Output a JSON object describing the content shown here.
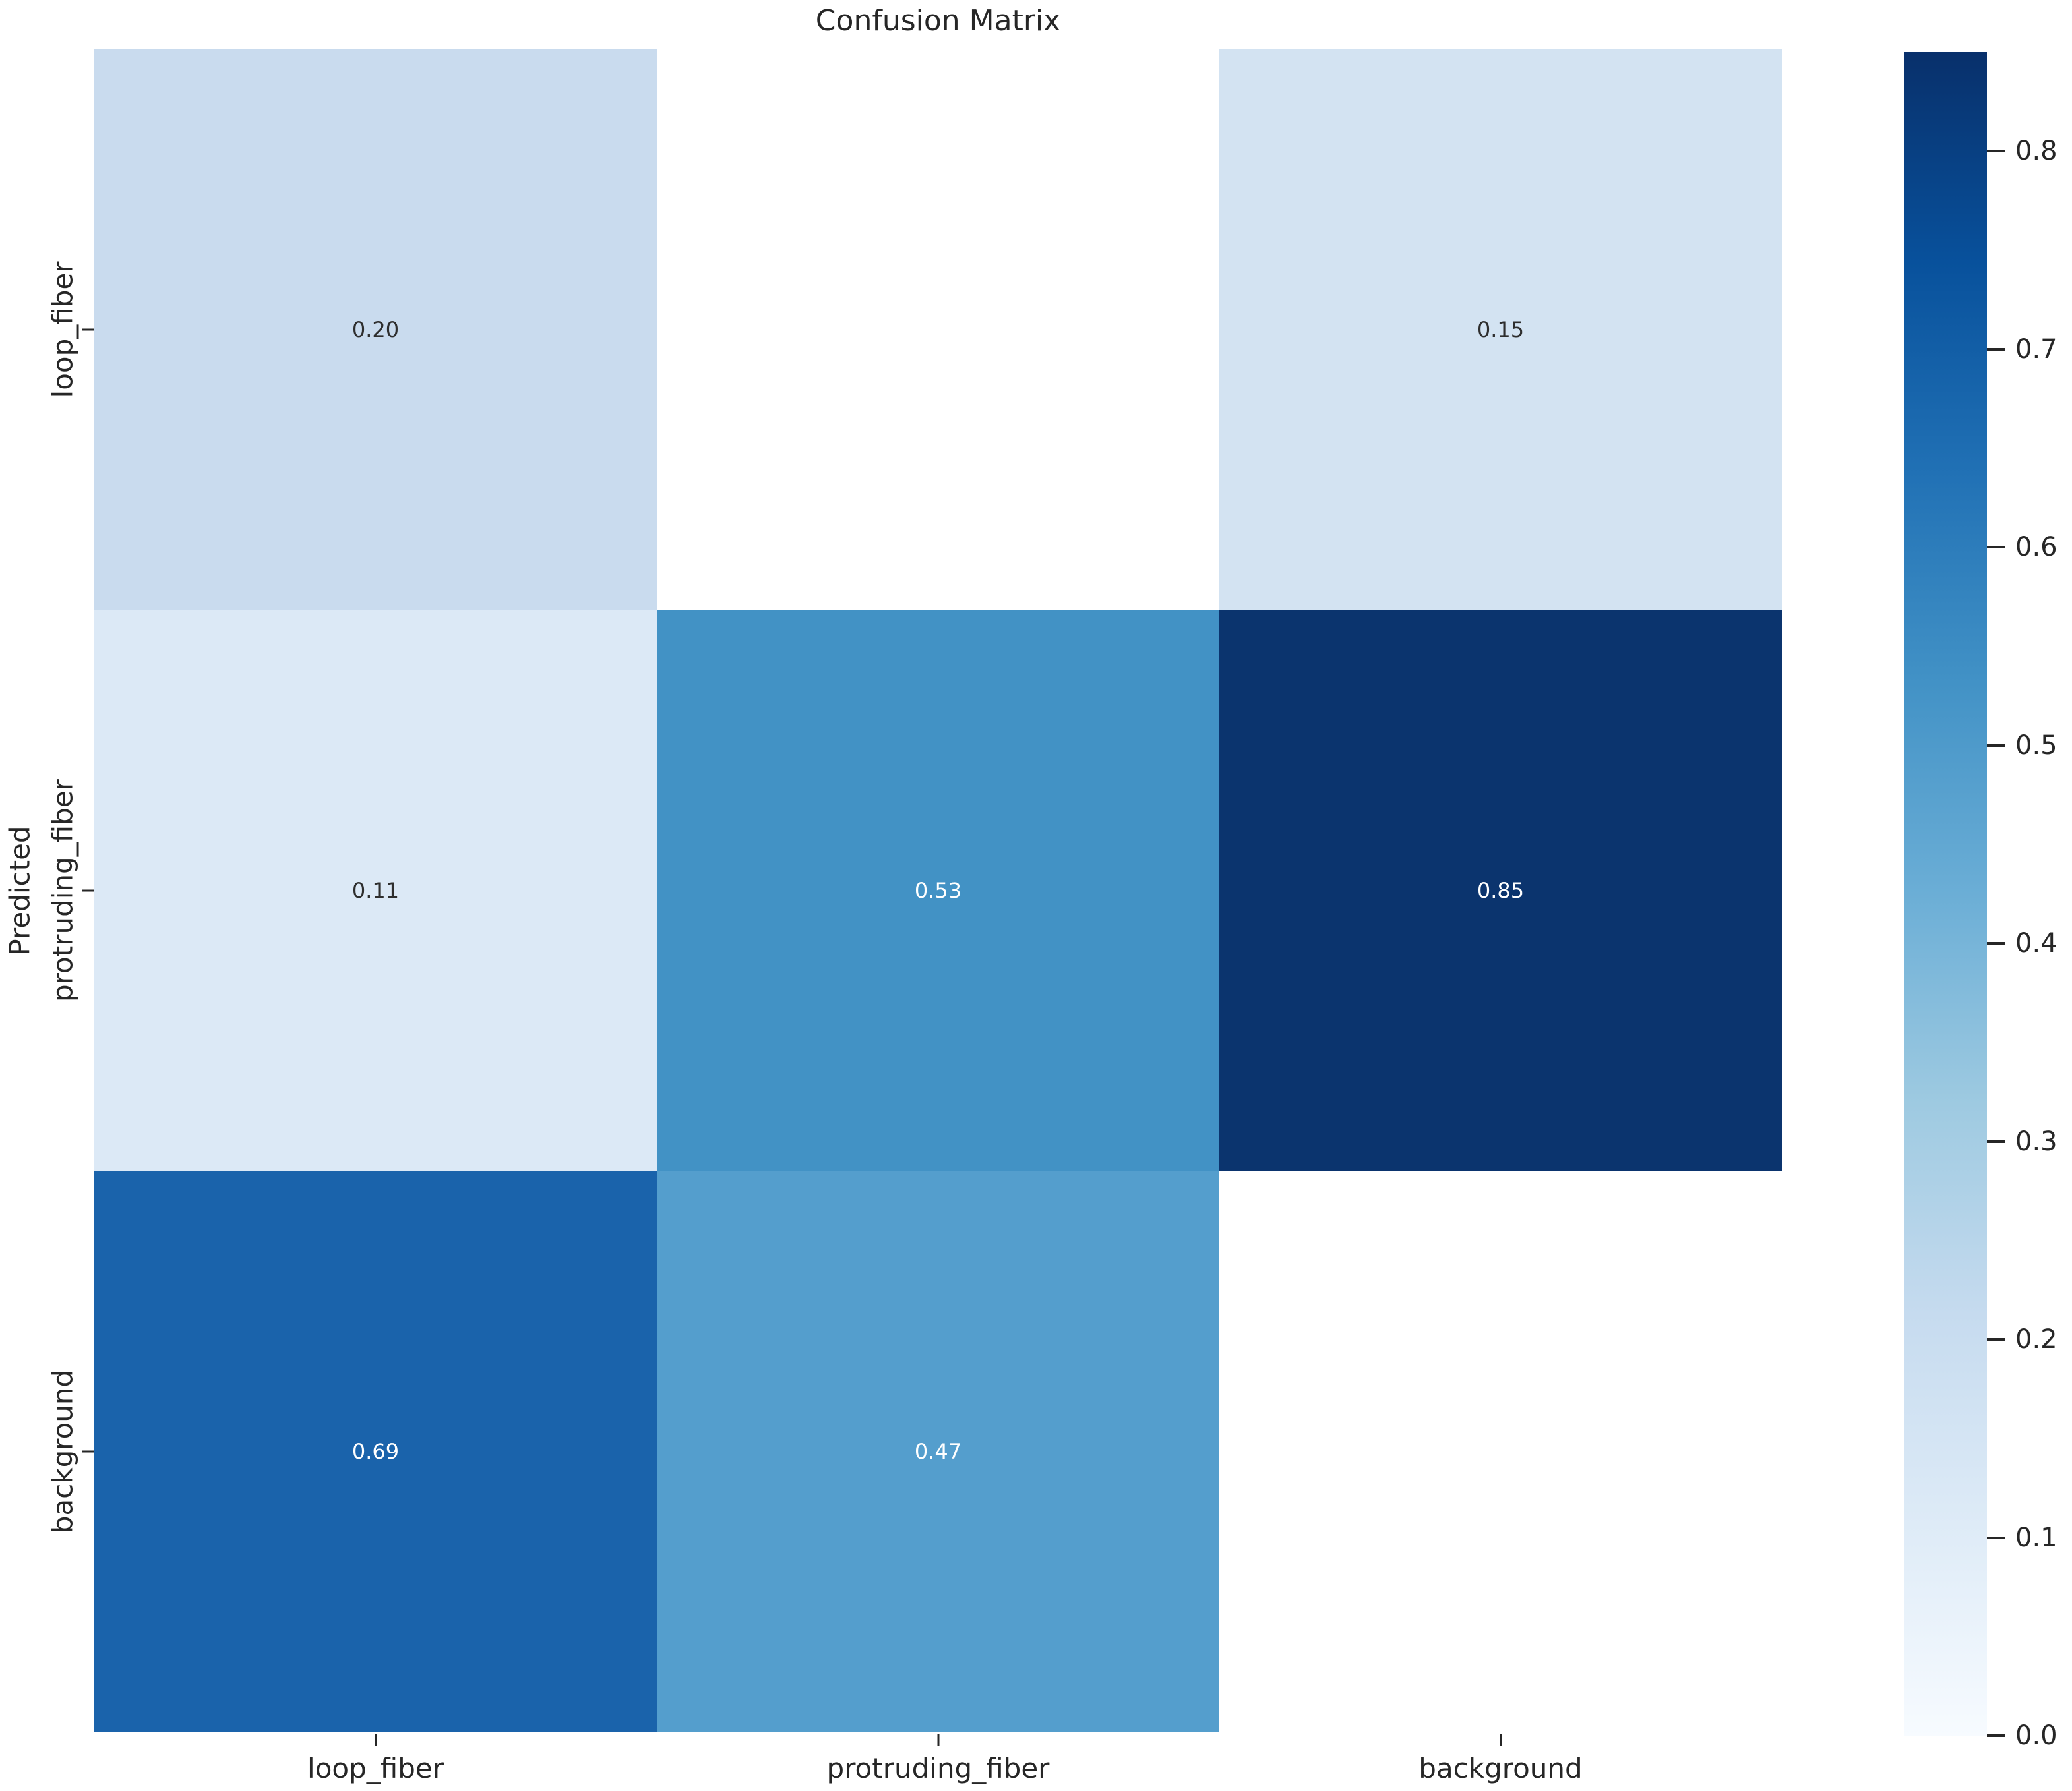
{
  "title": "Confusion Matrix",
  "chart_data": {
    "type": "heatmap",
    "title": "Confusion Matrix",
    "xlabel": "",
    "ylabel": "Predicted",
    "x_categories": [
      "loop_fiber",
      "protruding_fiber",
      "background"
    ],
    "y_categories": [
      "loop_fiber",
      "protruding_fiber",
      "background"
    ],
    "matrix": [
      [
        0.2,
        null,
        0.15
      ],
      [
        0.11,
        0.53,
        0.85
      ],
      [
        0.69,
        0.47,
        null
      ]
    ],
    "cell_labels": [
      [
        "0.20",
        "",
        "0.15"
      ],
      [
        "0.11",
        "0.53",
        "0.85"
      ],
      [
        "0.69",
        "0.47",
        ""
      ]
    ],
    "colormap": "Blues",
    "vmin": 0.0,
    "vmax": 0.85,
    "colorbar_tick_labels": [
      "0.8",
      "0.7",
      "0.6",
      "0.5",
      "0.4",
      "0.3",
      "0.2",
      "0.1",
      "0.0"
    ],
    "colorbar_position": "right",
    "grid": false,
    "colors": {
      "cells": [
        [
          "#c9dbee",
          "#ffffff",
          "#d3e3f2"
        ],
        [
          "#dce9f6",
          "#4292c5",
          "#0b346e"
        ],
        [
          "#1a63ab",
          "#549ecd",
          "#ffffff"
        ]
      ],
      "cell_text": [
        [
          "#2e2e2e",
          "",
          "#2e2e2e"
        ],
        [
          "#2e2e2e",
          "#ffffff",
          "#ffffff"
        ],
        [
          "#ffffff",
          "#ffffff",
          ""
        ]
      ],
      "tick_label": "#262626",
      "title": "#262626",
      "colormap_stops_low_to_high": [
        "#f7fbff",
        "#deebf7",
        "#c6dbef",
        "#9ecae1",
        "#6baed6",
        "#4292c6",
        "#2171b5",
        "#08519c",
        "#08306b"
      ]
    }
  }
}
